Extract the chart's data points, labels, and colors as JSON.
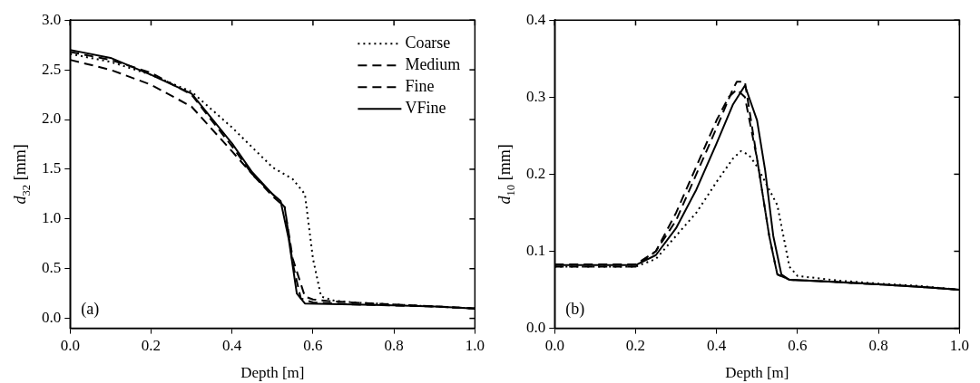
{
  "chart_data": [
    {
      "type": "line",
      "xlabel": "Depth [m]",
      "ylabel": "d$_{32}$ [mm]",
      "annotations": [
        "(a)"
      ],
      "legend": "top right",
      "grid": false,
      "marker": "none",
      "xlim": [
        0,
        1
      ],
      "xticks": [
        {
          "value": 0,
          "label": "0.0"
        },
        {
          "value": 0.2,
          "label": "0.2"
        },
        {
          "value": 0.4,
          "label": "0.4"
        },
        {
          "value": 0.6,
          "label": "0.6"
        },
        {
          "value": 0.8,
          "label": "0.8"
        },
        {
          "value": 1,
          "label": "1.0"
        }
      ],
      "ylim": [
        -0.1,
        3
      ],
      "yticks": [
        {
          "value": 0,
          "label": "0.0"
        },
        {
          "value": 0.5,
          "label": "0.5"
        },
        {
          "value": 1,
          "label": "1.0"
        },
        {
          "value": 1.5,
          "label": "1.5"
        },
        {
          "value": 2,
          "label": "2.0"
        },
        {
          "value": 2.5,
          "label": "2.5"
        },
        {
          "value": 3,
          "label": "3.0"
        }
      ],
      "series": [
        {
          "name": "Coarse",
          "color": "#000000",
          "line_style": "dotted",
          "x": [
            0,
            0.1,
            0.2,
            0.3,
            0.4,
            0.5,
            0.55,
            0.58,
            0.6,
            0.62,
            0.65,
            0.7,
            0.8,
            0.9,
            1
          ],
          "values": [
            2.66,
            2.58,
            2.45,
            2.28,
            1.92,
            1.52,
            1.4,
            1.25,
            0.6,
            0.22,
            0.18,
            0.16,
            0.14,
            0.12,
            0.1
          ]
        },
        {
          "name": "Medium",
          "color": "#000000",
          "line_style": "dashed",
          "x": [
            0,
            0.1,
            0.2,
            0.3,
            0.4,
            0.45,
            0.5,
            0.53,
            0.55,
            0.58,
            0.6,
            0.65,
            0.8,
            0.9,
            1
          ],
          "values": [
            2.6,
            2.5,
            2.35,
            2.13,
            1.68,
            1.45,
            1.25,
            1.12,
            0.6,
            0.22,
            0.19,
            0.17,
            0.14,
            0.12,
            0.1
          ]
        },
        {
          "name": "Fine",
          "color": "#000000",
          "line_style": "dashed",
          "x": [
            0,
            0.1,
            0.2,
            0.3,
            0.4,
            0.45,
            0.5,
            0.53,
            0.55,
            0.57,
            0.6,
            0.7,
            0.8,
            0.9,
            1
          ],
          "values": [
            2.68,
            2.6,
            2.47,
            2.25,
            1.73,
            1.45,
            1.23,
            1.12,
            0.55,
            0.2,
            0.16,
            0.14,
            0.13,
            0.12,
            0.1
          ]
        },
        {
          "name": "VFine",
          "color": "#000000",
          "line_style": "solid",
          "x": [
            0,
            0.1,
            0.2,
            0.3,
            0.4,
            0.45,
            0.5,
            0.52,
            0.54,
            0.56,
            0.58,
            0.7,
            0.8,
            0.9,
            1
          ],
          "values": [
            2.7,
            2.62,
            2.45,
            2.26,
            1.76,
            1.47,
            1.25,
            1.18,
            0.8,
            0.25,
            0.15,
            0.14,
            0.13,
            0.12,
            0.1
          ]
        }
      ]
    },
    {
      "type": "line",
      "xlabel": "Depth [m]",
      "ylabel": "d$_{10}$ [mm]",
      "annotations": [
        "(b)"
      ],
      "grid": false,
      "marker": "none",
      "xlim": [
        0,
        1
      ],
      "xticks": [
        {
          "value": 0,
          "label": "0.0"
        },
        {
          "value": 0.2,
          "label": "0.2"
        },
        {
          "value": 0.4,
          "label": "0.4"
        },
        {
          "value": 0.6,
          "label": "0.6"
        },
        {
          "value": 0.8,
          "label": "0.8"
        },
        {
          "value": 1,
          "label": "1.0"
        }
      ],
      "ylim": [
        0,
        0.4
      ],
      "yticks": [
        {
          "value": 0,
          "label": "0.0"
        },
        0.1,
        0.2,
        0.3,
        0.4
      ],
      "series": [
        {
          "color": "#000000",
          "line_style": "dotted",
          "x": [
            0,
            0.1,
            0.2,
            0.25,
            0.3,
            0.35,
            0.4,
            0.44,
            0.46,
            0.48,
            0.5,
            0.55,
            0.58,
            0.6,
            0.7,
            0.8,
            0.9,
            1
          ],
          "values": [
            0.08,
            0.08,
            0.08,
            0.09,
            0.12,
            0.15,
            0.19,
            0.22,
            0.23,
            0.225,
            0.21,
            0.16,
            0.08,
            0.068,
            0.062,
            0.058,
            0.055,
            0.05
          ]
        },
        {
          "color": "#000000",
          "line_style": "dashed",
          "x": [
            0,
            0.1,
            0.2,
            0.25,
            0.3,
            0.35,
            0.4,
            0.43,
            0.45,
            0.47,
            0.5,
            0.53,
            0.55,
            0.58,
            0.7,
            0.8,
            0.9,
            1
          ],
          "values": [
            0.083,
            0.083,
            0.083,
            0.1,
            0.15,
            0.21,
            0.27,
            0.3,
            0.31,
            0.3,
            0.22,
            0.12,
            0.07,
            0.063,
            0.06,
            0.057,
            0.054,
            0.05
          ]
        },
        {
          "color": "#000000",
          "line_style": "dashed",
          "x": [
            0,
            0.1,
            0.2,
            0.25,
            0.3,
            0.35,
            0.4,
            0.44,
            0.45,
            0.47,
            0.5,
            0.53,
            0.55,
            0.58,
            0.7,
            0.8,
            0.9,
            1
          ],
          "values": [
            0.08,
            0.08,
            0.08,
            0.1,
            0.14,
            0.2,
            0.26,
            0.31,
            0.32,
            0.32,
            0.22,
            0.12,
            0.07,
            0.063,
            0.06,
            0.057,
            0.054,
            0.05
          ]
        },
        {
          "color": "#000000",
          "line_style": "solid",
          "x": [
            0,
            0.1,
            0.2,
            0.25,
            0.3,
            0.35,
            0.4,
            0.44,
            0.47,
            0.5,
            0.52,
            0.54,
            0.56,
            0.58,
            0.7,
            0.8,
            0.9,
            1
          ],
          "values": [
            0.082,
            0.082,
            0.082,
            0.095,
            0.13,
            0.18,
            0.24,
            0.29,
            0.315,
            0.27,
            0.205,
            0.12,
            0.07,
            0.063,
            0.06,
            0.057,
            0.054,
            0.05
          ]
        }
      ]
    }
  ]
}
